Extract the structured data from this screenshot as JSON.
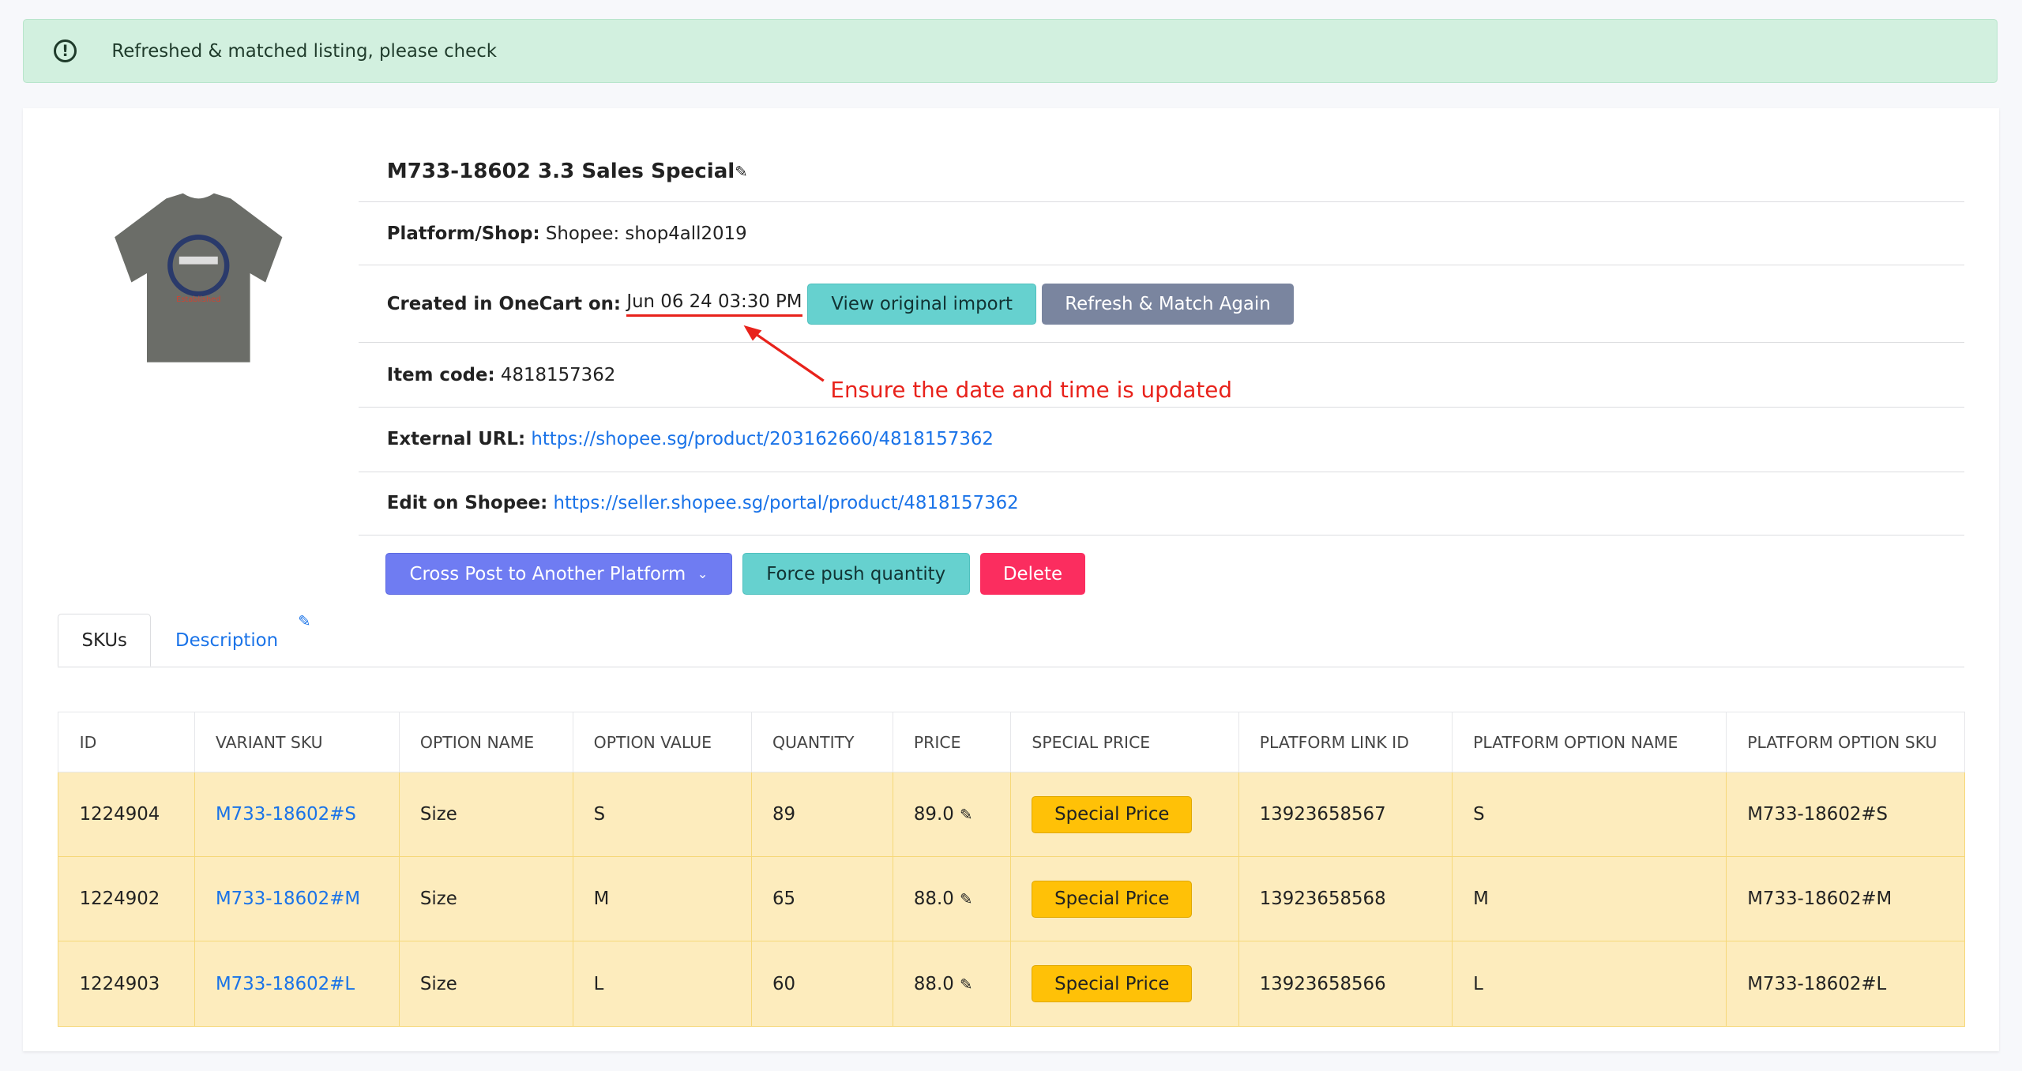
{
  "alert": {
    "icon": "exclamation-circle-icon",
    "message": "Refreshed & matched listing, please check"
  },
  "product": {
    "title": "M733-18602 3.3 Sales Special",
    "platform_label": "Platform/Shop:",
    "platform_value": "Shopee: shop4all2019",
    "created_label": "Created in OneCart on:",
    "created_value": "Jun 06 24 03:30 PM",
    "view_import": "View original import",
    "refresh_match": "Refresh & Match Again",
    "item_code_label": "Item code:",
    "item_code_value": "4818157362",
    "external_url_label": "External URL:",
    "external_url": "https://shopee.sg/product/203162660/4818157362",
    "edit_label": "Edit on Shopee:",
    "edit_url": "https://seller.shopee.sg/portal/product/4818157362",
    "cross_post": "Cross Post to Another Platform",
    "force_push": "Force push quantity",
    "delete": "Delete"
  },
  "annotation": "Ensure the date and time is updated",
  "tabs": [
    {
      "label": "SKUs",
      "active": true
    },
    {
      "label": "Description",
      "active": false
    }
  ],
  "table": {
    "headers": [
      "ID",
      "VARIANT SKU",
      "OPTION NAME",
      "OPTION VALUE",
      "QUANTITY",
      "PRICE",
      "SPECIAL PRICE",
      "PLATFORM LINK ID",
      "PLATFORM OPTION NAME",
      "PLATFORM OPTION SKU"
    ],
    "rows": [
      {
        "id": "1224904",
        "sku": "M733-18602#S",
        "option_name": "Size",
        "option_value": "S",
        "quantity": "89",
        "price": "89.0",
        "special": "Special Price",
        "link_id": "13923658567",
        "pon": "S",
        "pos": "M733-18602#S"
      },
      {
        "id": "1224902",
        "sku": "M733-18602#M",
        "option_name": "Size",
        "option_value": "M",
        "quantity": "65",
        "price": "88.0",
        "special": "Special Price",
        "link_id": "13923658568",
        "pon": "M",
        "pos": "M733-18602#M"
      },
      {
        "id": "1224903",
        "sku": "M733-18602#L",
        "option_name": "Size",
        "option_value": "L",
        "quantity": "60",
        "price": "88.0",
        "special": "Special Price",
        "link_id": "13923658566",
        "pon": "L",
        "pos": "M733-18602#L"
      }
    ]
  },
  "colors": {
    "alert_bg": "#d2f0df",
    "teal": "#66d1cf",
    "gray": "#7a859f",
    "indigo": "#6f7cf2",
    "red": "#fb2d5f",
    "row_bg": "#fdecbd",
    "yellow": "#ffc107",
    "link": "#1a73e8",
    "annotation": "#e8221b"
  }
}
